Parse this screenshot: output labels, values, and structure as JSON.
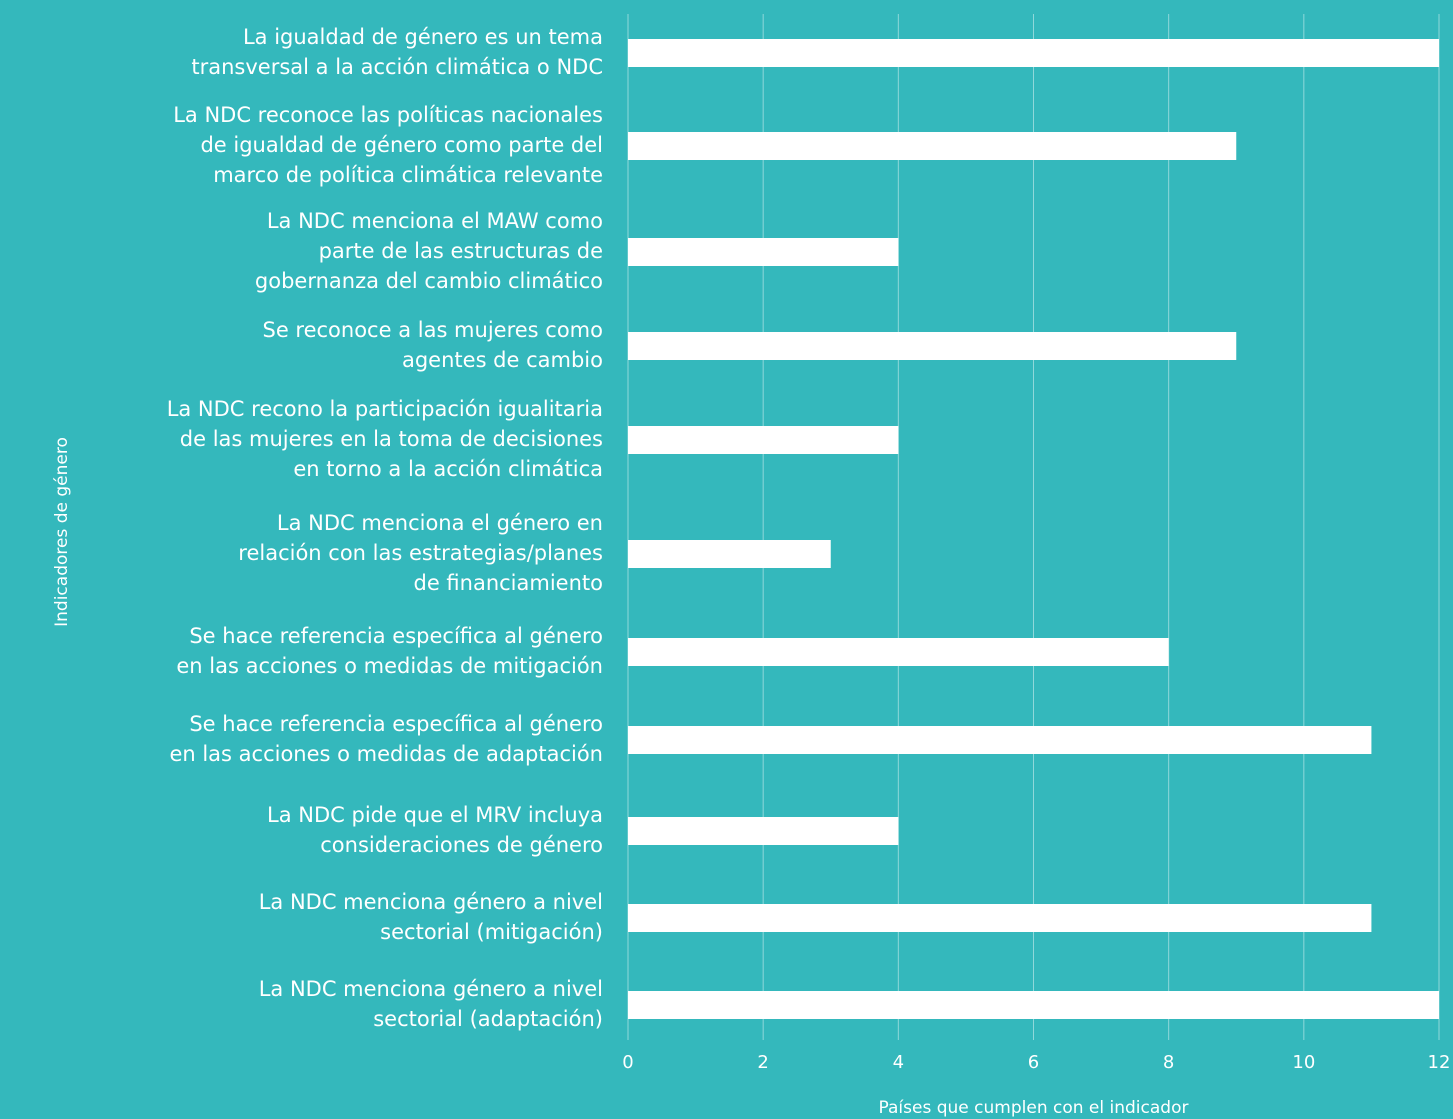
{
  "colors": {
    "background": "#34b8bc",
    "bar": "#ffffff",
    "grid": "#8fd8da",
    "text": "#ffffff"
  },
  "chart_data": {
    "type": "bar",
    "orientation": "horizontal",
    "categories": [
      "La igualdad de género es un tema\ntransversal a la acción climática o NDC",
      "La NDC reconoce las políticas nacionales\nde igualdad de género como parte del\nmarco de política climática relevante",
      "La NDC menciona el MAW como\nparte de las estructuras de\ngobernanza del cambio climático",
      "Se reconoce a las mujeres como\nagentes de cambio",
      "La NDC recono la participación igualitaria\nde las mujeres en la toma de decisiones\nen torno a la acción climática",
      "La NDC menciona el género en\nrelación con las estrategias/planes\nde financiamiento",
      "Se hace referencia específica al género\nen las acciones o medidas de mitigación",
      "Se hace referencia específica al género\nen las acciones o medidas de adaptación",
      "La NDC pide que el MRV incluya\nconsideraciones de género",
      "La NDC menciona género a nivel\nsectorial (mitigación)",
      "La NDC menciona género a nivel\nsectorial (adaptación)"
    ],
    "values": [
      12,
      9,
      4,
      9,
      4,
      3,
      8,
      11,
      4,
      11,
      12
    ],
    "xlabel": "Países que cumplen con el indicador",
    "ylabel": "Indicadores de género",
    "xlim": [
      0,
      12
    ],
    "xticks": [
      "0",
      "2",
      "4",
      "6",
      "8",
      "10",
      "12"
    ],
    "grid": true,
    "legend": "none"
  }
}
